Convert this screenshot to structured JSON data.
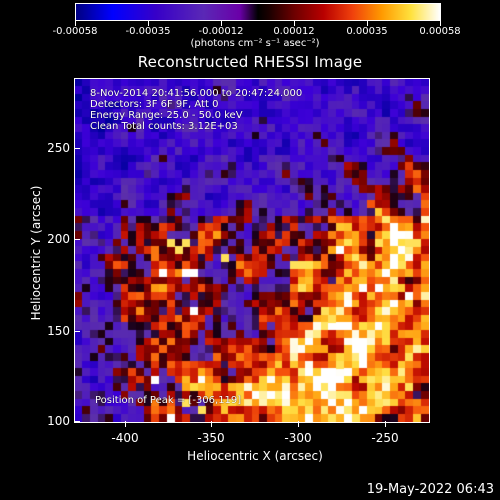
{
  "colorbar": {
    "labels": [
      "-0.00058",
      "-0.00035",
      "-0.00012",
      "0.00012",
      "0.00035",
      "0.00058"
    ],
    "units": "(photons cm⁻² s⁻¹ asec⁻²)"
  },
  "title": "Reconstructed RHESSI Image",
  "info": {
    "time_range": "8-Nov-2014 20:41:56.000 to 20:47:24.000",
    "detectors": "Detectors: 3F 6F 9F, Att 0",
    "energy_range": "Energy Range: 25.0 - 50.0 keV",
    "clean": "Clean      Total counts: 3.12E+03",
    "peak": "Position of Peak = [-306,119]"
  },
  "axes": {
    "x_label": "Heliocentric X (arcsec)",
    "y_label": "Heliocentric Y (arcsec)",
    "x_ticks": [
      "-400",
      "-350",
      "-300",
      "-250"
    ],
    "y_ticks": [
      "250",
      "200",
      "150",
      "100"
    ]
  },
  "footer": {
    "timestamp": "19-May-2022 06:43"
  },
  "colors": {
    "background": "#000000",
    "foreground": "#ffffff",
    "negative": "#0000ff",
    "positive": "#ffffff"
  }
}
